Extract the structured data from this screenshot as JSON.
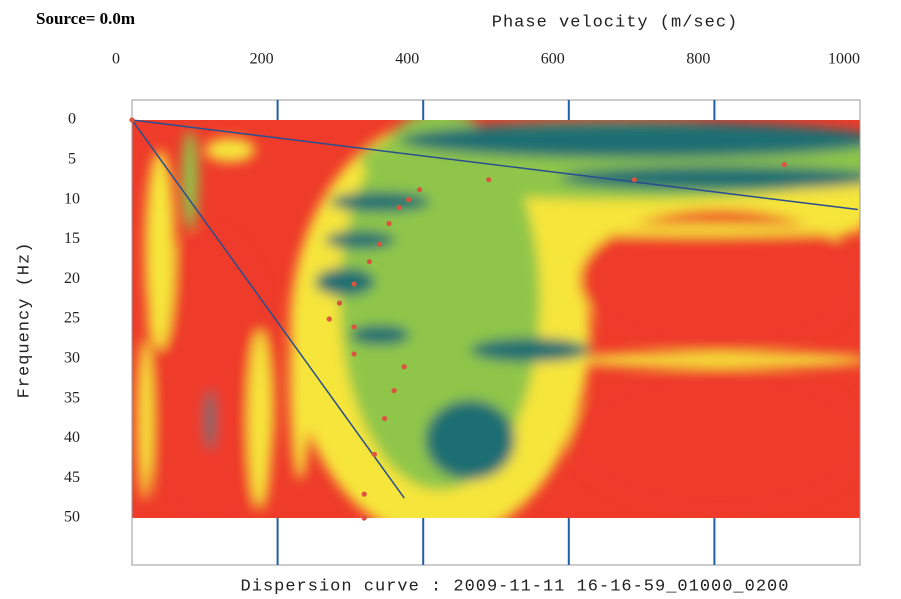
{
  "chart_data": {
    "type": "scatter",
    "title": "Source= 0.0m",
    "x_label": "Phase velocity (m/sec)",
    "y_label": "Frequency (Hz)",
    "caption": "Dispersion curve : 2009-11-11 16-16-59_01000_0200",
    "xlim": [
      0,
      1000
    ],
    "xticks": [
      0,
      200,
      400,
      600,
      800,
      1000
    ],
    "ylim": [
      0,
      50
    ],
    "yticks": [
      0,
      5,
      10,
      15,
      20,
      25,
      30,
      35,
      40,
      45,
      50
    ],
    "y_inverted": true,
    "tick_color": "#1f5fa8",
    "points": {
      "color": "#d9553f",
      "x": [
        0,
        490,
        690,
        896,
        395,
        380,
        367,
        353,
        340,
        326,
        305,
        285,
        271,
        305,
        305,
        374,
        360,
        347,
        333,
        319,
        319
      ],
      "y": [
        0,
        7.5,
        7.5,
        5.6,
        8.75,
        10,
        11,
        13,
        15.6,
        17.8,
        20.6,
        23,
        25,
        26,
        29.4,
        31,
        34,
        37.5,
        42,
        47,
        50
      ]
    },
    "lines": [
      {
        "color": "#2a4f8f",
        "x": [
          0,
          997
        ],
        "y": [
          0,
          11.25
        ]
      },
      {
        "color": "#2a4f8f",
        "x": [
          0,
          374
        ],
        "y": [
          0,
          47.5
        ]
      }
    ]
  }
}
